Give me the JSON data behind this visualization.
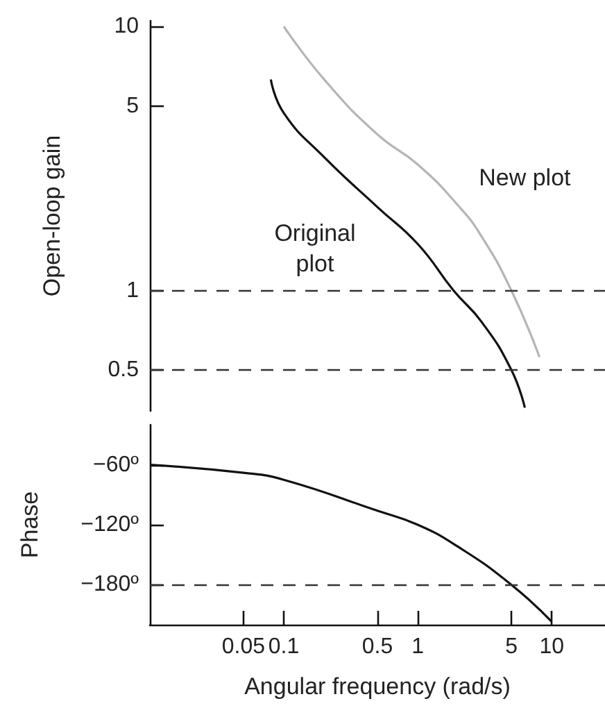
{
  "chart_data": [
    {
      "type": "line",
      "ylabel": "Open-loop gain",
      "log": "xy",
      "xlim": [
        0.01,
        25
      ],
      "ylim": [
        0.35,
        10.5
      ],
      "yticks": [
        0.5,
        1,
        5,
        10
      ],
      "tick_labels": "y",
      "grid": false,
      "marker": "none",
      "series": [
        {
          "name": "Original plot",
          "color": "#111111",
          "x": [
            0.08,
            0.1,
            0.2,
            0.5,
            1,
            1.85,
            3,
            5,
            6.3
          ],
          "values": [
            6.3,
            4.7,
            3.2,
            2.07,
            1.5,
            1,
            0.76,
            0.5,
            0.36
          ]
        },
        {
          "name": "New plot",
          "color": "#b5b5b5",
          "x": [
            0.1,
            0.2,
            0.5,
            1,
            2,
            3,
            5,
            8.1
          ],
          "values": [
            10,
            6.3,
            3.9,
            3.0,
            2.1,
            1.6,
            1,
            0.56
          ]
        }
      ],
      "ref_lines": [
        {
          "axis": "y",
          "value": 1,
          "line_style": "dashed",
          "color": "#333333"
        },
        {
          "axis": "y",
          "value": 0.5,
          "line_style": "dashed",
          "color": "#333333"
        }
      ]
    },
    {
      "type": "line",
      "ylabel": "Phase",
      "xlabel": "Angular frequency (rad/s)",
      "log": "x",
      "xlim": [
        0.01,
        25
      ],
      "ylim": [
        -220,
        -20
      ],
      "xticks": [
        0.05,
        0.1,
        0.5,
        1,
        5,
        10
      ],
      "yticks": [
        {
          "value": -60,
          "label": "−60º"
        },
        {
          "value": -120,
          "label": "−120º"
        },
        {
          "value": -180,
          "label": "−180º"
        }
      ],
      "grid": false,
      "marker": "none",
      "series": [
        {
          "color": "#111111",
          "x": [
            0.01,
            0.05,
            0.1,
            0.5,
            1,
            2,
            5,
            10
          ],
          "values": [
            -60,
            -68,
            -75,
            -106,
            -120,
            -142,
            -180,
            -217
          ]
        }
      ],
      "ref_lines": [
        {
          "axis": "y",
          "value": -180,
          "line_style": "dashed",
          "color": "#333333"
        }
      ]
    }
  ]
}
